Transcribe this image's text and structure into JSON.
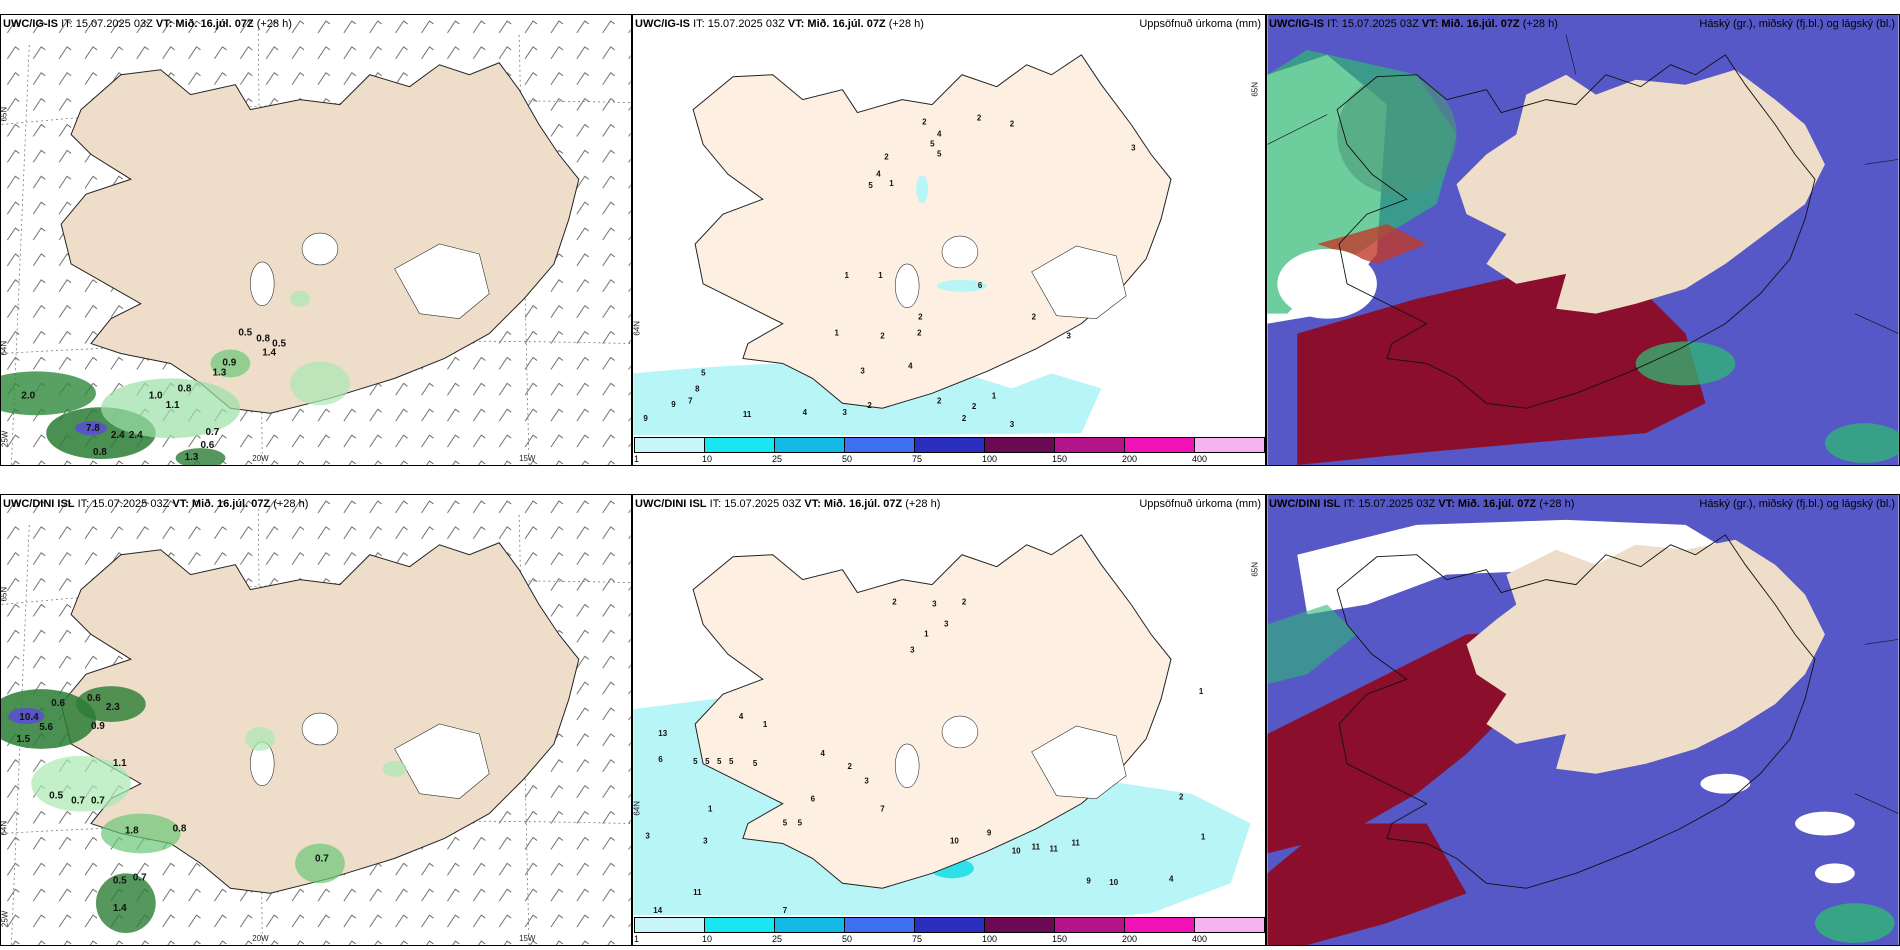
{
  "panels": {
    "p1": {
      "model": "UWC/IG-IS",
      "it": "IT: 15.07.2025 03Z",
      "vt": "VT: Mið. 16.júl. 07Z",
      "lead": "(+28 h)",
      "right": ""
    },
    "p2": {
      "model": "UWC/IG-IS",
      "it": "IT: 15.07.2025 03Z",
      "vt": "VT: Mið. 16.júl. 07Z",
      "lead": "(+28 h)",
      "right": "Uppsöfnuð úrkoma (mm)"
    },
    "p3": {
      "model": "UWC/IG-IS",
      "it": "IT: 15.07.2025 03Z",
      "vt": "VT: Mið. 16.júl. 07Z",
      "lead": "(+28 h)",
      "right": "Háský (gr.), miðský (fj.bl.) og lágský (bl.)"
    },
    "p4": {
      "model": "UWC/DINI ISL",
      "it": "IT: 15.07.2025 03Z",
      "vt": "VT: Mið. 16.júl. 07Z",
      "lead": "(+28 h)",
      "right": ""
    },
    "p5": {
      "model": "UWC/DINI ISL",
      "it": "IT: 15.07.2025 03Z",
      "vt": "VT: Mið. 16.júl. 07Z",
      "lead": "(+28 h)",
      "right": "Uppsöfnuð úrkoma (mm)"
    },
    "p6": {
      "model": "UWC/DINI ISL",
      "it": "IT: 15.07.2025 03Z",
      "vt": "VT: Mið. 16.júl. 07Z",
      "lead": "(+28 h)",
      "right": "Háský (gr.), miðský (fj.bl.) og lágský (bl.)"
    }
  },
  "grid_labels": {
    "lat65": "65N",
    "lat64": "64N",
    "lon25": "25W",
    "lon20": "20W",
    "lon15": "15W"
  },
  "precip_scale": {
    "ticks": [
      "1",
      "10",
      "25",
      "50",
      "75",
      "100",
      "150",
      "200",
      "400"
    ],
    "colors": [
      "#c8f5f8",
      "#19e6ee",
      "#14b9e6",
      "#3d6ff0",
      "#2b2fc0",
      "#6b0a52",
      "#b3148a",
      "#f012b6",
      "#f5b4f0"
    ]
  },
  "wind_precip_labels_top": [
    "0.5",
    "0.8",
    "0.5",
    "1.4",
    "0.9",
    "1.3",
    "1.0",
    "1.1",
    "0.8",
    "2.0",
    "7.8",
    "2.4",
    "2.4",
    "0.7",
    "0.6",
    "0.8",
    "1.3"
  ],
  "wind_precip_labels_bottom": [
    "0.6",
    "0.6",
    "2.3",
    "10.4",
    "5.6",
    "1.5",
    "0.9",
    "1.1",
    "0.5",
    "0.7",
    "0.7",
    "1.8",
    "0.8",
    "0.7",
    "0.5",
    "0.7",
    "1.4"
  ],
  "accum_labels_top": [
    "2",
    "2",
    "2",
    "4",
    "5",
    "5",
    "2",
    "4",
    "1",
    "5",
    "3",
    "1",
    "1",
    "6",
    "2",
    "2",
    "2",
    "1",
    "2",
    "3",
    "4",
    "3",
    "5",
    "8",
    "7",
    "9",
    "11",
    "4",
    "3",
    "2",
    "2",
    "1",
    "2",
    "2",
    "3",
    "9"
  ],
  "accum_labels_bottom": [
    "2",
    "3",
    "2",
    "3",
    "1",
    "3",
    "4",
    "1",
    "13",
    "6",
    "5",
    "5",
    "5",
    "5",
    "5",
    "4",
    "2",
    "3",
    "6",
    "5",
    "5",
    "7",
    "10",
    "9",
    "10",
    "11",
    "11",
    "11",
    "9",
    "10",
    "14",
    "11",
    "7",
    "3",
    "3",
    "1",
    "2",
    "1",
    "4",
    "1"
  ],
  "colors": {
    "land": "#eeddc9",
    "ocean": "#ffffff",
    "precip_light": "#b8f5f7",
    "precip_cyan": "#8fecf2",
    "high_cloud_green": "#2fb874",
    "mid_cloud_red": "#8b0f2c",
    "low_cloud_blue": "#5558c6"
  }
}
